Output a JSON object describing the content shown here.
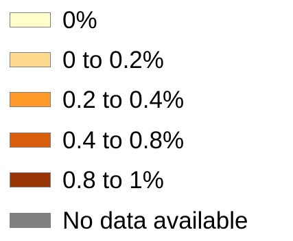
{
  "chart_data": {
    "type": "legend",
    "title": "",
    "legend": [
      {
        "label": "0%",
        "color": "#ffffcc"
      },
      {
        "label": "0 to 0.2%",
        "color": "#fed98e"
      },
      {
        "label": "0.2 to 0.4%",
        "color": "#fe9929"
      },
      {
        "label": "0.4 to 0.8%",
        "color": "#d95f0e"
      },
      {
        "label": "0.8 to 1%",
        "color": "#993404"
      },
      {
        "label": "No data available",
        "color": "#808080"
      }
    ]
  }
}
